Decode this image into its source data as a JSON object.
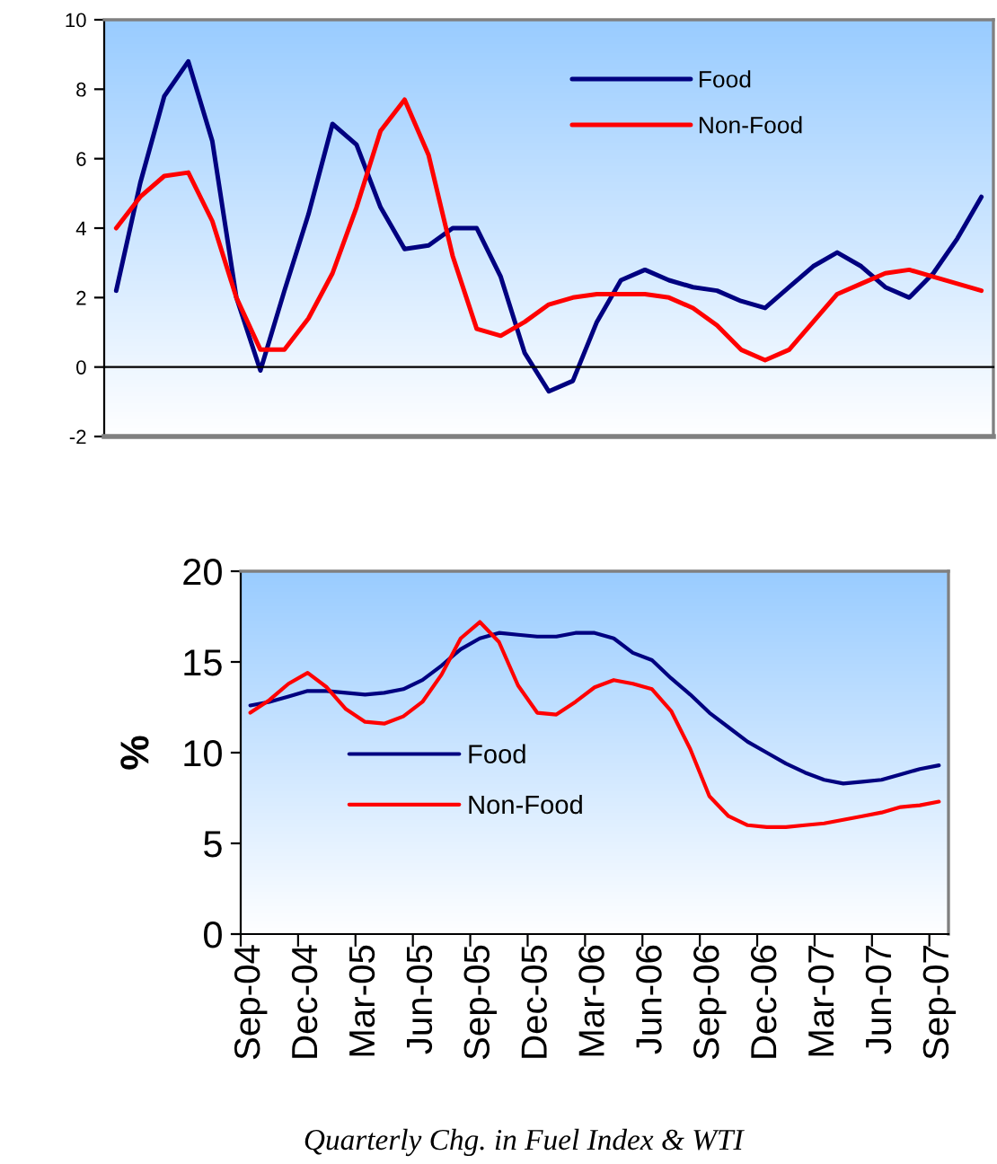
{
  "chart_data": [
    {
      "type": "line",
      "categories": [
        null,
        null,
        null,
        null,
        null,
        null,
        null,
        null,
        null,
        null,
        null,
        null,
        null,
        null,
        null,
        null,
        null,
        null,
        null,
        null,
        null,
        null,
        null,
        null,
        null,
        null,
        null,
        null,
        null,
        null,
        null,
        null,
        null,
        null,
        null,
        null,
        null
      ],
      "series": [
        {
          "name": "Food",
          "color": "#000080",
          "values": [
            2.2,
            5.3,
            7.8,
            8.8,
            6.5,
            2.0,
            -0.1,
            2.2,
            4.4,
            7.0,
            6.4,
            4.6,
            3.4,
            3.5,
            4.0,
            4.0,
            2.6,
            0.4,
            -0.7,
            -0.4,
            1.3,
            2.5,
            2.8,
            2.5,
            2.3,
            2.2,
            1.9,
            1.7,
            2.3,
            2.9,
            3.3,
            2.9,
            2.3,
            2.0,
            2.7,
            3.7,
            4.9
          ]
        },
        {
          "name": "Non-Food",
          "color": "#ff0000",
          "values": [
            4.0,
            4.9,
            5.5,
            5.6,
            4.2,
            2.0,
            0.5,
            0.5,
            1.4,
            2.7,
            4.6,
            6.8,
            7.7,
            6.1,
            3.2,
            1.1,
            0.9,
            1.3,
            1.8,
            2.0,
            2.1,
            2.1,
            2.1,
            2.0,
            1.7,
            1.2,
            0.5,
            0.2,
            0.5,
            1.3,
            2.1,
            2.4,
            2.7,
            2.8,
            2.6,
            2.4,
            2.2
          ]
        }
      ],
      "ylim": [
        -2,
        10
      ],
      "yticks": [
        -2,
        0,
        2,
        4,
        6,
        8,
        10
      ],
      "legend": "top right"
    },
    {
      "type": "line",
      "ylabel": "%",
      "categories": [
        "Sep-04",
        null,
        null,
        "Dec-04",
        null,
        null,
        "Mar-05",
        null,
        null,
        "Jun-05",
        null,
        null,
        "Sep-05",
        null,
        null,
        "Dec-05",
        null,
        null,
        "Mar-06",
        null,
        null,
        "Jun-06",
        null,
        null,
        "Sep-06",
        null,
        null,
        "Dec-06",
        null,
        null,
        "Mar-07",
        null,
        null,
        "Jun-07",
        null,
        null,
        "Sep-07"
      ],
      "series": [
        {
          "name": "Food",
          "color": "#000080",
          "values": [
            12.6,
            12.8,
            13.1,
            13.4,
            13.4,
            13.3,
            13.2,
            13.3,
            13.5,
            14.0,
            14.8,
            15.7,
            16.3,
            16.6,
            16.5,
            16.4,
            16.4,
            16.6,
            16.6,
            16.3,
            15.5,
            15.1,
            14.1,
            13.2,
            12.2,
            11.4,
            10.6,
            10.0,
            9.4,
            8.9,
            8.5,
            8.3,
            8.4,
            8.5,
            8.8,
            9.1,
            9.3
          ]
        },
        {
          "name": "Non-Food",
          "color": "#ff0000",
          "values": [
            12.2,
            12.9,
            13.8,
            14.4,
            13.6,
            12.4,
            11.7,
            11.6,
            12.0,
            12.8,
            14.3,
            16.3,
            17.2,
            16.1,
            13.7,
            12.2,
            12.1,
            12.8,
            13.6,
            14.0,
            13.8,
            13.5,
            12.3,
            10.2,
            7.6,
            6.5,
            6.0,
            5.9,
            5.9,
            6.0,
            6.1,
            6.3,
            6.5,
            6.7,
            7.0,
            7.1,
            7.3
          ]
        }
      ],
      "ylim": [
        0,
        20
      ],
      "yticks": [
        0,
        5,
        10,
        15,
        20
      ],
      "legend": "center left",
      "annotations": [
        "Quarterly Chg. in Fuel Index & WTI"
      ]
    }
  ]
}
